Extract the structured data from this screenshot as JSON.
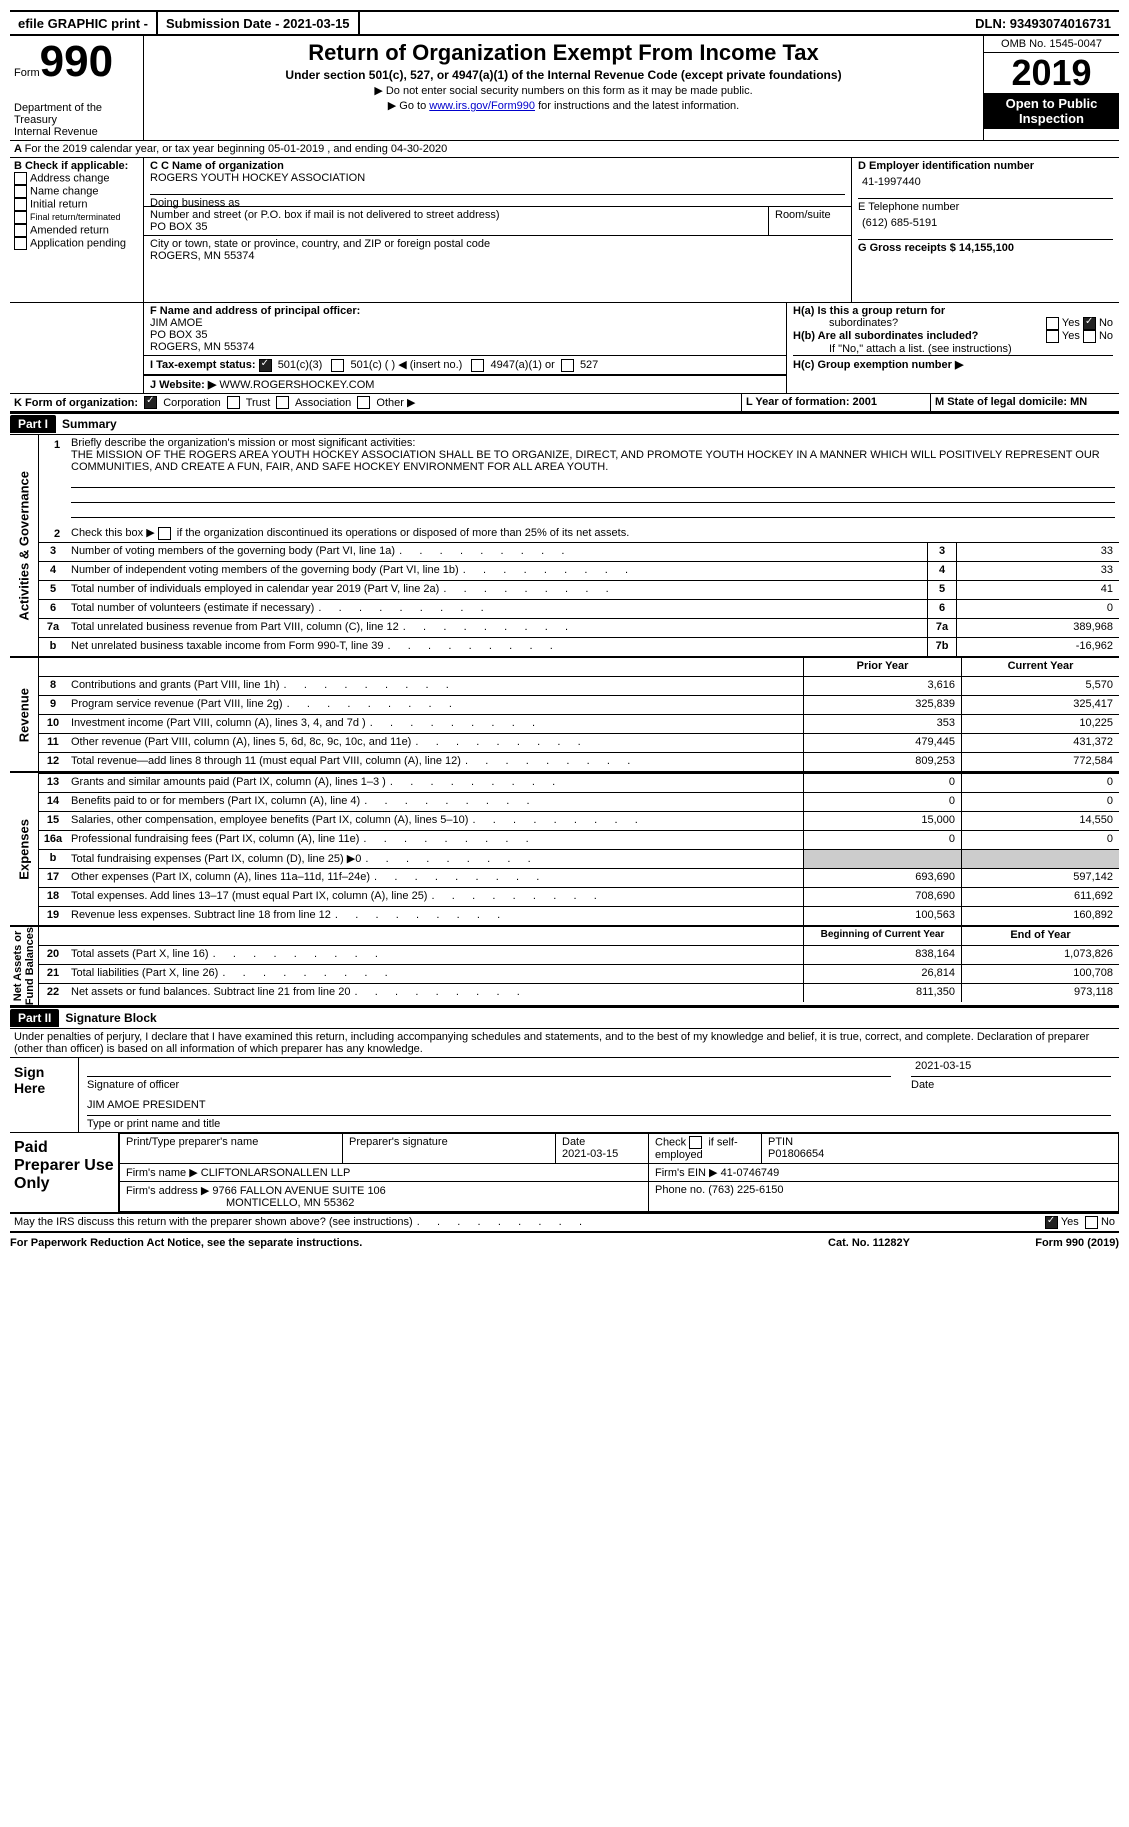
{
  "top": {
    "efile": "efile GRAPHIC print -",
    "submission": "Submission Date - 2021-03-15",
    "dln": "DLN: 93493074016731"
  },
  "header": {
    "form_label": "Form",
    "form_num": "990",
    "dept1": "Department of the",
    "dept2": "Treasury",
    "dept3": "Internal Revenue",
    "title": "Return of Organization Exempt From Income Tax",
    "sub": "Under section 501(c), 527, or 4947(a)(1) of the Internal Revenue Code (except private foundations)",
    "line1": "▶ Do not enter social security numbers on this form as it may be made public.",
    "line2a": "▶ Go to ",
    "line2link": "www.irs.gov/Form990",
    "line2b": " for instructions and the latest information.",
    "omb": "OMB No. 1545-0047",
    "year": "2019",
    "open1": "Open to Public",
    "open2": "Inspection"
  },
  "lineA": {
    "prefix": "A",
    "text": "For the 2019 calendar year, or tax year beginning 05-01-2019    , and ending 04-30-2020"
  },
  "boxB": {
    "header": "B Check if applicable:",
    "items": [
      "Address change",
      "Name change",
      "Initial return",
      "Final return/terminated",
      "Amended return",
      "Application pending"
    ]
  },
  "boxC": {
    "label": "C Name of organization",
    "name": "ROGERS YOUTH HOCKEY ASSOCIATION",
    "dba_label": "Doing business as",
    "street_label": "Number and street (or P.O. box if mail is not delivered to street address)",
    "room_label": "Room/suite",
    "street": "PO BOX 35",
    "city_label": "City or town, state or province, country, and ZIP or foreign postal code",
    "city": "ROGERS, MN   55374"
  },
  "boxD": {
    "label": "D Employer identification number",
    "value": "41-1997440"
  },
  "boxE": {
    "label": "E Telephone number",
    "value": "(612) 685-5191"
  },
  "boxG": {
    "label": "G Gross receipts $ 14,155,100"
  },
  "boxF": {
    "label": "F   Name and address of principal officer:",
    "l1": "JIM AMOE",
    "l2": "PO BOX 35",
    "l3": "ROGERS, MN   55374"
  },
  "boxH": {
    "a": "H(a)  Is this a group return for",
    "a2": "subordinates?",
    "b": "H(b)  Are all subordinates included?",
    "b2": "If \"No,\" attach a list. (see instructions)",
    "c": "H(c)  Group exemption number ▶"
  },
  "boxI": {
    "label": "I     Tax-exempt status:",
    "o1": "501(c)(3)",
    "o2": "501(c) (   ) ◀ (insert no.)",
    "o3": "4947(a)(1) or",
    "o4": "527"
  },
  "boxJ": {
    "label": "J     Website: ▶",
    "value": "WWW.ROGERSHOCKEY.COM"
  },
  "boxK": {
    "label": "K Form of organization:",
    "o1": "Corporation",
    "o2": "Trust",
    "o3": "Association",
    "o4": "Other ▶"
  },
  "boxL": {
    "label": "L Year of formation: 2001"
  },
  "boxM": {
    "label": "M State of legal domicile: MN"
  },
  "part1": {
    "header": "Part I",
    "title": "Summary"
  },
  "section_labels": {
    "gov": "Activities & Governance",
    "rev": "Revenue",
    "exp": "Expenses",
    "net": "Net Assets or\nFund Balances"
  },
  "line1": {
    "num": "1",
    "label": "Briefly describe the organization's mission or most significant activities:",
    "text": "THE MISSION OF THE ROGERS AREA YOUTH HOCKEY ASSOCIATION SHALL BE TO ORGANIZE, DIRECT, AND PROMOTE YOUTH HOCKEY IN A MANNER WHICH WILL POSITIVELY REPRESENT OUR COMMUNITIES, AND CREATE A FUN, FAIR, AND SAFE HOCKEY ENVIRONMENT FOR ALL AREA YOUTH."
  },
  "line2": {
    "num": "2",
    "label": "Check this box ▶",
    "label2": "if the organization discontinued its operations or disposed of more than 25% of its net assets."
  },
  "gov": [
    {
      "n": "3",
      "t": "Number of voting members of the governing body (Part VI, line 1a)",
      "b": "3",
      "v": "33"
    },
    {
      "n": "4",
      "t": "Number of independent voting members of the governing body (Part VI, line 1b)",
      "b": "4",
      "v": "33"
    },
    {
      "n": "5",
      "t": "Total number of individuals employed in calendar year 2019 (Part V, line 2a)",
      "b": "5",
      "v": "41"
    },
    {
      "n": "6",
      "t": "Total number of volunteers (estimate if necessary)",
      "b": "6",
      "v": "0"
    },
    {
      "n": "7a",
      "t": "Total unrelated business revenue from Part VIII, column (C), line 12",
      "b": "7a",
      "v": "389,968"
    },
    {
      "n": "b",
      "t": "Net unrelated business taxable income from Form 990-T, line 39",
      "b": "7b",
      "v": "-16,962"
    }
  ],
  "colhdr": {
    "prior": "Prior Year",
    "current": "Current Year"
  },
  "rev": [
    {
      "n": "8",
      "t": "Contributions and grants (Part VIII, line 1h)",
      "p": "3,616",
      "c": "5,570"
    },
    {
      "n": "9",
      "t": "Program service revenue (Part VIII, line 2g)",
      "p": "325,839",
      "c": "325,417"
    },
    {
      "n": "10",
      "t": "Investment income (Part VIII, column (A), lines 3, 4, and 7d )",
      "p": "353",
      "c": "10,225"
    },
    {
      "n": "11",
      "t": "Other revenue (Part VIII, column (A), lines 5, 6d, 8c, 9c, 10c, and 11e)",
      "p": "479,445",
      "c": "431,372"
    },
    {
      "n": "12",
      "t": "Total revenue—add lines 8 through 11 (must equal Part VIII, column (A), line 12)",
      "p": "809,253",
      "c": "772,584"
    }
  ],
  "exp": [
    {
      "n": "13",
      "t": "Grants and similar amounts paid (Part IX, column (A), lines 1–3 )",
      "p": "0",
      "c": "0"
    },
    {
      "n": "14",
      "t": "Benefits paid to or for members (Part IX, column (A), line 4)",
      "p": "0",
      "c": "0"
    },
    {
      "n": "15",
      "t": "Salaries, other compensation, employee benefits (Part IX, column (A), lines 5–10)",
      "p": "15,000",
      "c": "14,550"
    },
    {
      "n": "16a",
      "t": "Professional fundraising fees (Part IX, column (A), line 11e)",
      "p": "0",
      "c": "0"
    },
    {
      "n": "b",
      "t": "Total fundraising expenses (Part IX, column (D), line 25) ▶0",
      "p": "",
      "c": "",
      "shade": true
    },
    {
      "n": "17",
      "t": "Other expenses (Part IX, column (A), lines 11a–11d, 11f–24e)",
      "p": "693,690",
      "c": "597,142"
    },
    {
      "n": "18",
      "t": "Total expenses. Add lines 13–17 (must equal Part IX, column (A), line 25)",
      "p": "708,690",
      "c": "611,692"
    },
    {
      "n": "19",
      "t": "Revenue less expenses. Subtract line 18 from line 12",
      "p": "100,563",
      "c": "160,892"
    }
  ],
  "colhdr2": {
    "begin": "Beginning of Current Year",
    "end": "End of Year"
  },
  "net": [
    {
      "n": "20",
      "t": "Total assets (Part X, line 16)",
      "p": "838,164",
      "c": "1,073,826"
    },
    {
      "n": "21",
      "t": "Total liabilities (Part X, line 26)",
      "p": "26,814",
      "c": "100,708"
    },
    {
      "n": "22",
      "t": "Net assets or fund balances. Subtract line 21 from line 20",
      "p": "811,350",
      "c": "973,118"
    }
  ],
  "part2": {
    "header": "Part II",
    "title": "Signature Block"
  },
  "perjury": "Under penalties of perjury, I declare that I have examined this return, including accompanying schedules and statements, and to the best of my knowledge and belief, it is true, correct, and complete. Declaration of preparer (other than officer) is based on all information of which preparer has any knowledge.",
  "sign": {
    "side": "Sign Here",
    "sig_label": "Signature of officer",
    "date_label": "Date",
    "date": "2021-03-15",
    "name": "JIM AMOE PRESIDENT",
    "name_label": "Type or print name and title"
  },
  "paid": {
    "side": "Paid Preparer Use Only",
    "h1": "Print/Type preparer's name",
    "h2": "Preparer's signature",
    "h3": "Date",
    "h3v": "2021-03-15",
    "h4": "Check",
    "h4b": "if self-employed",
    "h5": "PTIN",
    "h5v": "P01806654",
    "firm_name_l": "Firm's name    ▶",
    "firm_name": "CLIFTONLARSONALLEN LLP",
    "firm_ein_l": "Firm's EIN ▶",
    "firm_ein": "41-0746749",
    "firm_addr_l": "Firm's address ▶",
    "firm_addr1": "9766 FALLON AVENUE SUITE 106",
    "firm_addr2": "MONTICELLO, MN   55362",
    "phone_l": "Phone no. (763) 225-6150"
  },
  "discuss": "May the IRS discuss this return with the preparer shown above? (see instructions)",
  "footer": {
    "left": "For Paperwork Reduction Act Notice, see the separate instructions.",
    "mid": "Cat. No. 11282Y",
    "right": "Form 990 (2019)"
  },
  "yn": {
    "yes": "Yes",
    "no": "No"
  }
}
